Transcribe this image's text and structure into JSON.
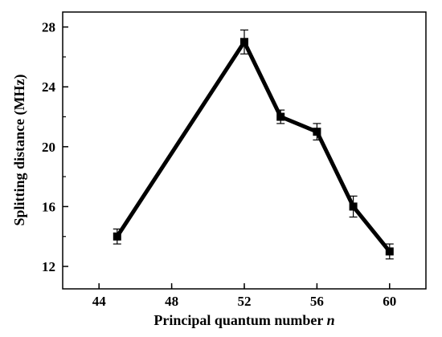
{
  "chart_data": {
    "type": "line",
    "xlabel": "Principal quantum number",
    "xlabel_var": "n",
    "ylabel": "Splitting distance (MHz)",
    "xlim": [
      42,
      62
    ],
    "ylim": [
      10.5,
      29
    ],
    "x_ticks": [
      44,
      48,
      52,
      56,
      60
    ],
    "y_ticks": [
      12,
      16,
      20,
      24,
      28
    ],
    "grid": false,
    "series": [
      {
        "x": [
          45,
          52,
          54,
          56,
          58,
          60
        ],
        "y": [
          14,
          27,
          22,
          21,
          16,
          13
        ],
        "error": [
          0.5,
          0.8,
          0.45,
          0.55,
          0.7,
          0.5
        ],
        "color": "#000000",
        "marker": "square"
      }
    ]
  }
}
